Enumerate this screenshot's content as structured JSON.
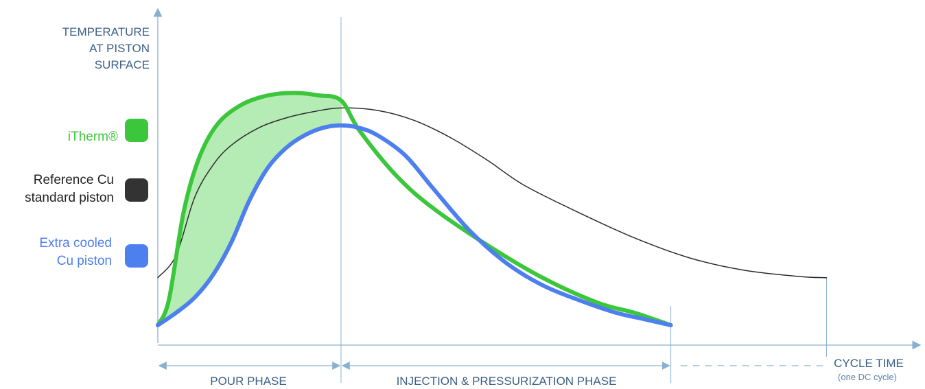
{
  "chart_data": {
    "type": "line",
    "ylabel": [
      "TEMPERATURE",
      "AT PISTON",
      "SURFACE"
    ],
    "xlabel": "CYCLE TIME",
    "xlabel_note": "(one DC cycle)",
    "phases": [
      {
        "label": "POUR PHASE",
        "start": 0,
        "end": 1
      },
      {
        "label": "INJECTION & PRESSURIZATION PHASE",
        "start": 1,
        "end": 2.8
      }
    ],
    "xlim": [
      0,
      4.1
    ],
    "ylim": [
      0,
      1
    ],
    "series": [
      {
        "name": "iTherm®",
        "legend_lines": [
          "iTherm®"
        ],
        "color": "#3cc63c",
        "x": [
          0,
          0.06,
          0.14,
          0.22,
          0.32,
          0.45,
          0.6,
          0.75,
          0.88,
          1.0,
          1.1,
          1.3,
          1.5,
          1.8,
          2.1,
          2.4,
          2.6,
          2.8
        ],
        "y": [
          0.0,
          0.1,
          0.45,
          0.66,
          0.8,
          0.88,
          0.92,
          0.93,
          0.92,
          0.9,
          0.78,
          0.6,
          0.47,
          0.32,
          0.19,
          0.09,
          0.05,
          0.0
        ]
      },
      {
        "name": "Reference Cu standard piston",
        "legend_lines": [
          "Reference Cu",
          "standard piston"
        ],
        "color": "#2b2b2b",
        "x": [
          0,
          0.1,
          0.2,
          0.3,
          0.4,
          0.55,
          0.7,
          0.85,
          1.0,
          1.2,
          1.4,
          1.6,
          1.8,
          2.0,
          2.3,
          2.6,
          2.9,
          3.2,
          3.5,
          3.65
        ],
        "y": [
          0.19,
          0.28,
          0.51,
          0.64,
          0.72,
          0.79,
          0.83,
          0.855,
          0.87,
          0.86,
          0.82,
          0.75,
          0.66,
          0.56,
          0.45,
          0.35,
          0.27,
          0.22,
          0.195,
          0.19
        ]
      },
      {
        "name": "Extra cooled Cu piston",
        "legend_lines": [
          "Extra cooled",
          "Cu piston"
        ],
        "color": "#4d7fef",
        "x": [
          0,
          0.1,
          0.2,
          0.3,
          0.4,
          0.5,
          0.6,
          0.7,
          0.8,
          0.9,
          1.0,
          1.1,
          1.2,
          1.35,
          1.5,
          1.7,
          1.9,
          2.1,
          2.3,
          2.5,
          2.65,
          2.8
        ],
        "y": [
          0.0,
          0.05,
          0.11,
          0.2,
          0.33,
          0.5,
          0.63,
          0.71,
          0.76,
          0.79,
          0.8,
          0.79,
          0.76,
          0.68,
          0.55,
          0.38,
          0.25,
          0.16,
          0.1,
          0.05,
          0.025,
          0.0
        ]
      }
    ],
    "fill_between": {
      "upper": "iTherm®",
      "lower": "Extra cooled Cu piston",
      "x_range": [
        0,
        1
      ],
      "color": "#b5ebb5"
    },
    "axis_color": "#8ab0cf",
    "grid": false
  }
}
